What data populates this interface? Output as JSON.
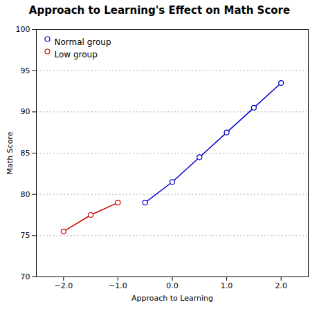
{
  "chart_data": {
    "type": "line",
    "title": "Approach to Learning's Effect on Math Score",
    "xlabel": "Approach to Learning",
    "ylabel": "Math Score",
    "xlim": [
      -2.5,
      2.5
    ],
    "ylim": [
      70,
      100
    ],
    "xticks": [
      -2,
      -1,
      0,
      1,
      2
    ],
    "yticks": [
      70,
      75,
      80,
      85,
      90,
      95,
      100
    ],
    "grid": true,
    "legend": "upper left",
    "series": [
      {
        "name": "Normal group",
        "color": "#0000CC",
        "marker": "circle",
        "x": [
          -0.5,
          0.0,
          0.5,
          1.0,
          1.5,
          2.0
        ],
        "values": [
          79.0,
          81.5,
          84.5,
          87.5,
          90.5,
          93.5
        ]
      },
      {
        "name": "Low group",
        "color": "#CC0000",
        "marker": "circle",
        "x": [
          -2.0,
          -1.5,
          -1.0
        ],
        "values": [
          75.5,
          77.5,
          79.0
        ]
      }
    ]
  }
}
